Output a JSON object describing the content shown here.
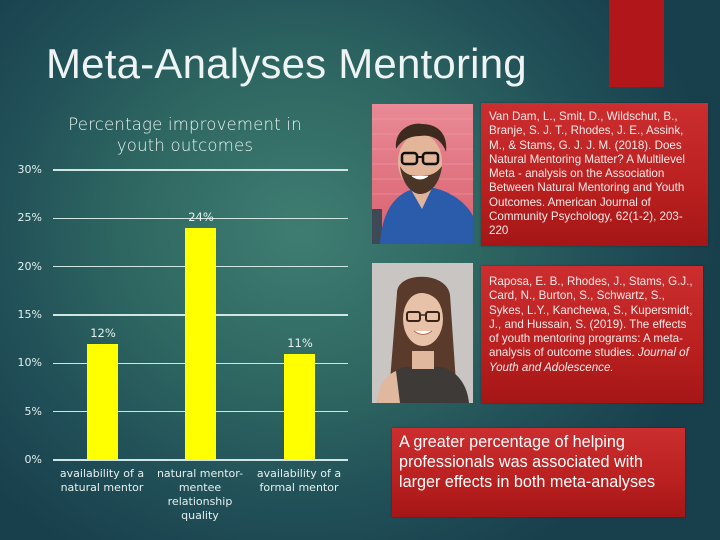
{
  "slide": {
    "title": "Meta-Analyses Mentoring",
    "colors": {
      "background_light": "#3f7d72",
      "background_dark": "#183f4c",
      "accent_red": "#b0161a",
      "bar_yellow": "#ffff00",
      "box_red": "#c0231f"
    }
  },
  "chart_data": {
    "type": "bar",
    "title": "Percentage improvement in youth outcomes",
    "title_lines": [
      "Percentage improvement in",
      "youth outcomes"
    ],
    "categories": [
      "availability of a natural mentor",
      "natural mentor-mentee relationship quality",
      "availability of a formal mentor"
    ],
    "category_lines": [
      [
        "availability of a",
        "natural mentor"
      ],
      [
        "natural mentor-",
        "mentee",
        "relationship",
        "quality"
      ],
      [
        "availability of a",
        "formal mentor"
      ]
    ],
    "values": [
      12,
      24,
      11
    ],
    "data_labels": [
      "12%",
      "24%",
      "11%"
    ],
    "xlabel": "",
    "ylabel": "",
    "ylim": [
      0,
      30
    ],
    "y_ticks": [
      "0%",
      "5%",
      "10%",
      "15%",
      "20%",
      "25%",
      "30%"
    ],
    "grid": true,
    "legend": "none",
    "bar_color": "#ffff00"
  },
  "people": [
    {
      "name": "photo-man-glasses",
      "caption": ""
    },
    {
      "name": "photo-woman-glasses",
      "caption": ""
    }
  ],
  "citations": [
    {
      "text": "Van Dam, L., Smit, D., Wildschut, B., Branje, S. J. T., Rhodes, J. E., Assink, M., & Stams, G. J. J. M. (2018). Does Natural Mentoring Matter? A Multilevel Meta - analysis on the Association Between Natural Mentoring and Youth Outcomes. American Journal of Community Psychology, 62(1-2), 203-220"
    },
    {
      "text": "Raposa, E. B., Rhodes, J., Stams, G.J., Card, N., Burton, S., Schwartz, S., Sykes, L.Y., Kanchewa, S., Kupersmidt, J., and Hussain, S. (2019). The effects of youth mentoring programs: A meta-analysis of outcome studies.",
      "journal": "Journal of Youth and Adolescence."
    }
  ],
  "conclusion": "A greater percentage of helping professionals was associated with larger effects in both meta-analyses"
}
